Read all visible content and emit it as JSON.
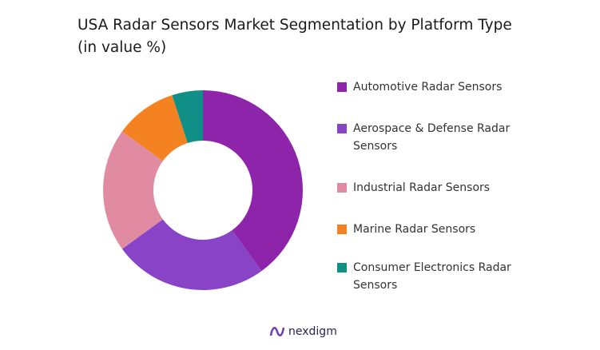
{
  "chart_data": {
    "type": "donut",
    "title": "USA Radar Sensors Market Segmentation by Platform Type (in value %)",
    "categories": [
      "Automotive Radar Sensors",
      "Aerospace & Defense Radar Sensors",
      "Industrial Radar Sensors",
      "Marine Radar Sensors",
      "Consumer Electronics Radar Sensors"
    ],
    "values": [
      40,
      25,
      20,
      10,
      5
    ],
    "colors": [
      "#8e24aa",
      "#8843c6",
      "#e08ba2",
      "#f58220",
      "#0f8f86"
    ]
  },
  "brand": "nexdigm"
}
